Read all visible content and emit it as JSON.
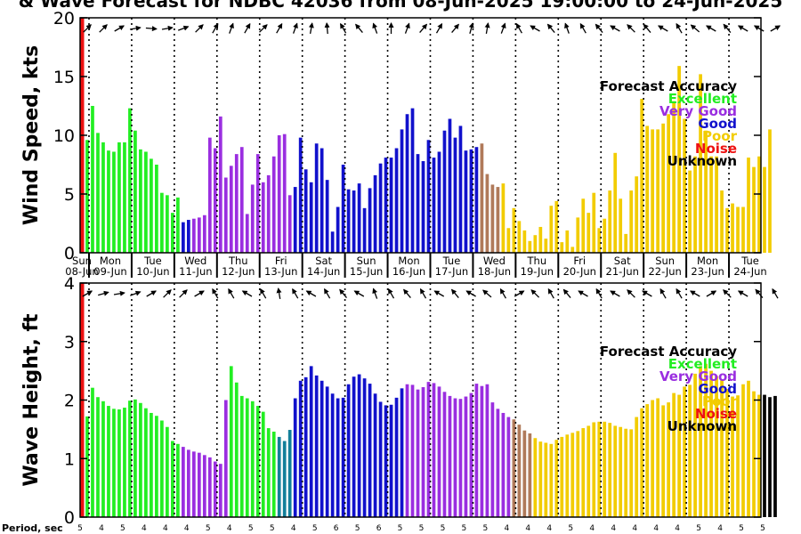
{
  "title": "& Wave Forecast for NDBC 42036 from 08-Jun-2025 19:00:00 to 24-Jun-2025",
  "colors": {
    "excellent": "#22ee22",
    "very_good": "#9a2ee0",
    "good": "#1111cc",
    "poor": "#f2cc00",
    "noise": "#ee1111",
    "unknown": "#000000",
    "transition_good_excellent": "#127f9a",
    "transition_verygood_poor": "#b07a5a"
  },
  "legend": {
    "title": "Forecast Accuracy",
    "items": [
      {
        "label": "Excellent",
        "color": "#22ee22"
      },
      {
        "label": "Very Good",
        "color": "#9a2ee0"
      },
      {
        "label": "Good",
        "color": "#1111cc"
      },
      {
        "label": "Poor",
        "color": "#f2cc00"
      },
      {
        "label": "Noise",
        "color": "#ee1111"
      },
      {
        "label": "Unknown",
        "color": "#000000"
      }
    ]
  },
  "period_axis_label": "Period, sec",
  "day_labels": [
    {
      "dow": "Sun",
      "date": "08-Jun",
      "noise_dow": true
    },
    {
      "dow": "Mon",
      "date": "09-Jun"
    },
    {
      "dow": "Tue",
      "date": "10-Jun"
    },
    {
      "dow": "Wed",
      "date": "11-Jun"
    },
    {
      "dow": "Thu",
      "date": "12-Jun"
    },
    {
      "dow": "Fri",
      "date": "13-Jun"
    },
    {
      "dow": "Sat",
      "date": "14-Jun"
    },
    {
      "dow": "Sun",
      "date": "15-Jun"
    },
    {
      "dow": "Mon",
      "date": "16-Jun"
    },
    {
      "dow": "Tue",
      "date": "17-Jun"
    },
    {
      "dow": "Wed",
      "date": "18-Jun"
    },
    {
      "dow": "Thu",
      "date": "19-Jun"
    },
    {
      "dow": "Fri",
      "date": "20-Jun"
    },
    {
      "dow": "Sat",
      "date": "21-Jun"
    },
    {
      "dow": "Sun",
      "date": "22-Jun"
    },
    {
      "dow": "Mon",
      "date": "23-Jun"
    },
    {
      "dow": "Tue",
      "date": "24-Jun"
    }
  ],
  "periods": [
    5,
    4,
    5,
    4,
    4,
    4,
    5,
    4,
    5,
    5,
    4,
    5,
    6,
    5,
    6,
    5,
    5,
    5,
    5,
    5,
    4,
    4,
    4,
    5,
    4,
    4,
    4,
    4,
    4,
    5,
    4,
    5,
    5
  ],
  "chart_data": [
    {
      "type": "bar",
      "name": "wind",
      "ylabel": "Wind Speed, kts",
      "ylim": [
        0,
        20
      ],
      "yticks": [
        0,
        5,
        10,
        15,
        20
      ],
      "x_unit": "hours since 08-Jun-2025 19:00",
      "bar_step_hours": 3,
      "noise_line_hours": 1,
      "values": [
        8.6,
        9.6,
        12.5,
        10.2,
        9.4,
        8.7,
        8.6,
        9.4,
        9.4,
        12.3,
        10.4,
        8.8,
        8.6,
        8.0,
        7.5,
        5.1,
        4.9,
        3.4,
        4.7,
        2.6,
        2.8,
        2.9,
        3.0,
        3.2,
        9.8,
        8.9,
        11.6,
        6.4,
        7.4,
        8.4,
        9.0,
        3.3,
        5.8,
        8.4,
        6.0,
        6.6,
        8.2,
        10.0,
        10.1,
        4.9,
        5.6,
        9.8,
        7.1,
        6.0,
        9.3,
        8.9,
        6.2,
        1.8,
        3.9,
        7.5,
        5.4,
        5.3,
        5.9,
        3.8,
        5.5,
        6.6,
        7.6,
        8.1,
        8.1,
        8.9,
        10.5,
        11.8,
        12.3,
        8.4,
        7.8,
        9.6,
        8.1,
        8.6,
        10.4,
        11.4,
        9.8,
        10.8,
        8.7,
        8.8,
        9.0,
        9.3,
        6.7,
        5.8,
        5.6,
        5.9,
        2.1,
        3.8,
        2.7,
        1.9,
        1.0,
        1.5,
        2.2,
        1.2,
        4.0,
        4.4,
        0.9,
        1.9,
        0.5,
        3.0,
        4.6,
        3.4,
        5.1,
        2.1,
        2.9,
        5.3,
        8.5,
        4.6,
        1.6,
        5.3,
        6.5,
        13.1,
        10.8,
        10.5,
        10.5,
        11.0,
        11.8,
        12.9,
        15.9,
        11.4,
        7.0,
        8.2,
        15.2,
        10.4,
        8.2,
        8.2,
        5.3,
        3.8,
        4.2,
        3.9,
        3.9,
        8.1,
        7.3,
        8.2,
        7.3,
        10.5
      ],
      "accuracy": [
        "E",
        "E",
        "E",
        "E",
        "E",
        "E",
        "E",
        "E",
        "E",
        "E",
        "E",
        "E",
        "E",
        "E",
        "E",
        "E",
        "E",
        "E",
        "E",
        "G",
        "G",
        "V",
        "V",
        "V",
        "V",
        "V",
        "V",
        "V",
        "V",
        "V",
        "V",
        "V",
        "V",
        "V",
        "V",
        "V",
        "V",
        "V",
        "V",
        "V",
        "G",
        "G",
        "G",
        "G",
        "G",
        "G",
        "G",
        "G",
        "G",
        "G",
        "G",
        "G",
        "G",
        "G",
        "G",
        "G",
        "G",
        "G",
        "G",
        "G",
        "G",
        "G",
        "G",
        "G",
        "G",
        "G",
        "G",
        "G",
        "G",
        "G",
        "G",
        "G",
        "G",
        "G",
        "G",
        "T2",
        "T2",
        "T2",
        "T2",
        "P",
        "P",
        "P",
        "P",
        "P",
        "P",
        "P",
        "P",
        "P",
        "P",
        "P",
        "P",
        "P",
        "P",
        "P",
        "P",
        "P",
        "P",
        "P",
        "P",
        "P",
        "P",
        "P",
        "P",
        "P",
        "P",
        "P",
        "P",
        "P",
        "P",
        "P",
        "P",
        "P",
        "P",
        "P",
        "P",
        "P",
        "P",
        "P",
        "P",
        "P",
        "P",
        "P",
        "P",
        "P",
        "P",
        "P",
        "P",
        "P",
        "P",
        "P"
      ],
      "arrows_deg": [
        45,
        45,
        60,
        80,
        95,
        80,
        70,
        45,
        30,
        20,
        30,
        45,
        30,
        20,
        10,
        355,
        330,
        320,
        340,
        0,
        20,
        40,
        30,
        40,
        15,
        10,
        20,
        330,
        300,
        320,
        340,
        330,
        320,
        300,
        315,
        320,
        300,
        330,
        310,
        300,
        320,
        300,
        300,
        60
      ]
    },
    {
      "type": "bar",
      "name": "waves",
      "ylabel": "Wave Height, ft",
      "ylim": [
        0,
        4
      ],
      "yticks": [
        0,
        1,
        2,
        3,
        4
      ],
      "x_unit": "hours since 08-Jun-2025 19:00",
      "bar_step_hours": 3,
      "noise_line_hours": 1,
      "values": [
        1.73,
        1.72,
        2.21,
        2.05,
        1.98,
        1.9,
        1.85,
        1.84,
        1.87,
        1.99,
        2.01,
        1.95,
        1.86,
        1.78,
        1.73,
        1.65,
        1.54,
        1.3,
        1.25,
        1.2,
        1.15,
        1.12,
        1.1,
        1.06,
        1.02,
        0.95,
        0.91,
        2.0,
        2.58,
        2.3,
        2.07,
        2.03,
        1.98,
        1.9,
        1.8,
        1.52,
        1.46,
        1.37,
        1.3,
        1.49,
        2.03,
        2.33,
        2.39,
        2.58,
        2.42,
        2.33,
        2.23,
        2.11,
        2.03,
        2.04,
        2.27,
        2.4,
        2.44,
        2.37,
        2.28,
        2.11,
        1.97,
        1.91,
        1.92,
        2.04,
        2.2,
        2.27,
        2.26,
        2.18,
        2.22,
        2.31,
        2.29,
        2.23,
        2.14,
        2.07,
        2.03,
        2.02,
        2.06,
        2.12,
        2.28,
        2.24,
        2.27,
        1.96,
        1.85,
        1.78,
        1.71,
        1.67,
        1.58,
        1.48,
        1.43,
        1.35,
        1.29,
        1.27,
        1.25,
        1.32,
        1.37,
        1.41,
        1.44,
        1.47,
        1.52,
        1.56,
        1.62,
        1.63,
        1.63,
        1.61,
        1.56,
        1.54,
        1.51,
        1.5,
        1.71,
        1.86,
        1.93,
        2.0,
        2.03,
        1.91,
        1.96,
        2.12,
        2.09,
        2.23,
        2.26,
        2.45,
        2.58,
        2.62,
        2.5,
        2.41,
        2.34,
        2.19,
        2.06,
        2.08,
        2.27,
        2.33,
        2.15,
        2.09,
        2.09,
        2.05,
        2.07
      ],
      "accuracy": [
        "E",
        "E",
        "E",
        "E",
        "E",
        "E",
        "E",
        "E",
        "E",
        "E",
        "E",
        "E",
        "E",
        "E",
        "E",
        "E",
        "E",
        "E",
        "E",
        "V",
        "V",
        "V",
        "V",
        "V",
        "V",
        "V",
        "V",
        "V",
        "E",
        "E",
        "E",
        "E",
        "E",
        "E",
        "E",
        "E",
        "E",
        "T1",
        "T1",
        "T1",
        "G",
        "G",
        "G",
        "G",
        "G",
        "G",
        "G",
        "G",
        "G",
        "G",
        "G",
        "G",
        "G",
        "G",
        "G",
        "G",
        "G",
        "G",
        "G",
        "G",
        "G",
        "V",
        "V",
        "V",
        "V",
        "V",
        "V",
        "V",
        "V",
        "V",
        "V",
        "V",
        "V",
        "V",
        "V",
        "V",
        "V",
        "V",
        "V",
        "V",
        "V",
        "T2",
        "T2",
        "T2",
        "T2",
        "P",
        "P",
        "P",
        "P",
        "P",
        "P",
        "P",
        "P",
        "P",
        "P",
        "P",
        "P",
        "P",
        "P",
        "P",
        "P",
        "P",
        "P",
        "P",
        "P",
        "P",
        "P",
        "P",
        "P",
        "P",
        "P",
        "P",
        "P",
        "P",
        "P",
        "P",
        "P",
        "P",
        "P",
        "P",
        "P",
        "P",
        "P",
        "P",
        "P",
        "P",
        "P",
        "P"
      ],
      "arrows_deg": [
        60,
        75,
        80,
        70,
        60,
        45,
        45,
        60,
        330,
        330,
        300,
        330,
        350,
        330,
        300,
        330,
        320,
        300,
        340,
        330,
        320,
        330,
        300,
        320,
        300,
        310,
        330,
        60,
        315,
        330,
        320,
        300,
        330,
        300,
        315,
        300,
        330,
        330,
        300,
        60,
        315,
        300,
        320,
        330
      ]
    }
  ]
}
